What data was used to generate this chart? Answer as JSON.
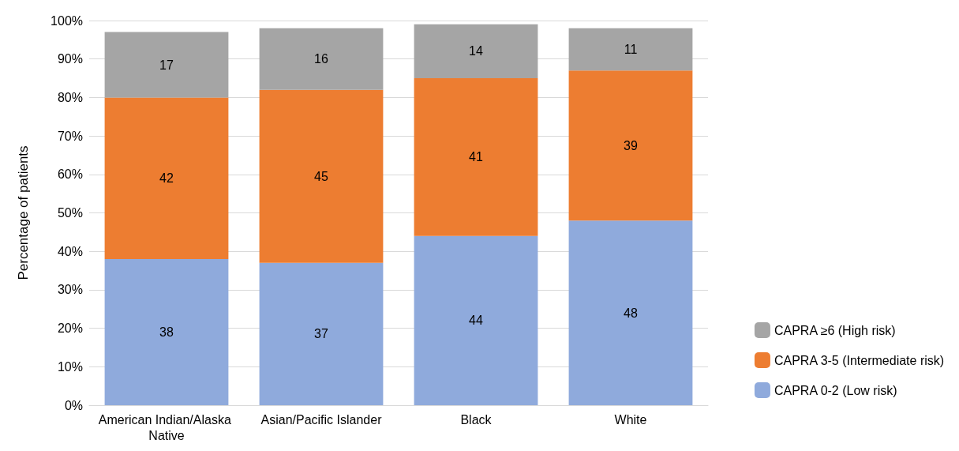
{
  "chart_data": {
    "type": "bar",
    "stacked": true,
    "ylabel": "Percentage of patients",
    "categories": [
      "American Indian/Alaska Native",
      "Asian/Pacific Islander",
      "Black",
      "White"
    ],
    "series": [
      {
        "name": "CAPRA 0-2 (Low risk)",
        "color": "#8faadc",
        "values": [
          38,
          37,
          44,
          48
        ]
      },
      {
        "name": "CAPRA 3-5 (Intermediate risk)",
        "color": "#ed7d31",
        "values": [
          42,
          45,
          41,
          39
        ]
      },
      {
        "name": "CAPRA ≥6 (High risk)",
        "color": "#a5a5a5",
        "values": [
          17,
          16,
          14,
          11
        ]
      }
    ],
    "ylim": [
      0,
      100
    ],
    "yticks": [
      {
        "value": 0,
        "label": "0%"
      },
      {
        "value": 10,
        "label": "10%"
      },
      {
        "value": 20,
        "label": "20%"
      },
      {
        "value": 30,
        "label": "30%"
      },
      {
        "value": 40,
        "label": "40%"
      },
      {
        "value": 50,
        "label": "50%"
      },
      {
        "value": 60,
        "label": "60%"
      },
      {
        "value": 70,
        "label": "70%"
      },
      {
        "value": 80,
        "label": "80%"
      },
      {
        "value": 90,
        "label": "90%"
      },
      {
        "value": 100,
        "label": "100%"
      }
    ],
    "grid": "y",
    "legend": "right",
    "data_labels": true
  }
}
